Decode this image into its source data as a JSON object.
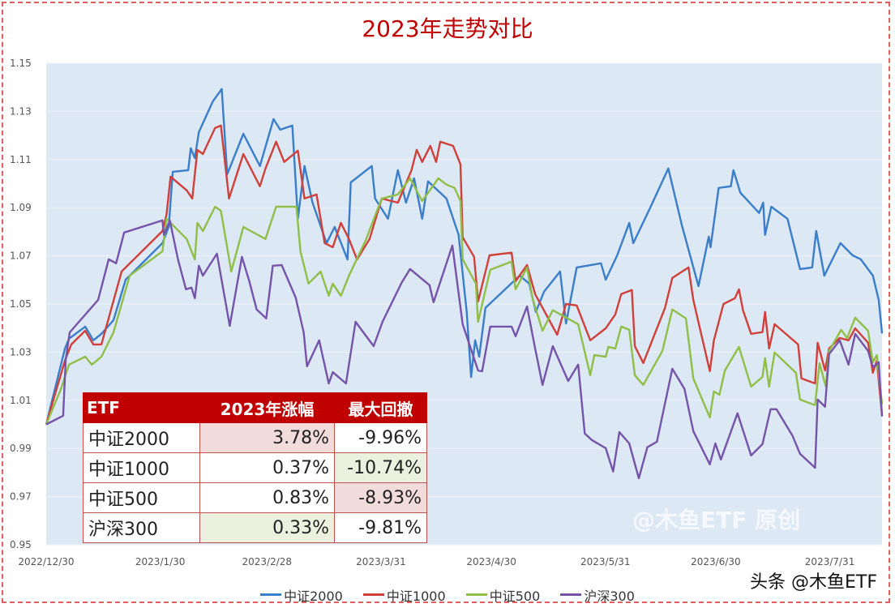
{
  "title": "2023年走势对比",
  "watermark": "@木鱼ETF 原创",
  "brand": "头条 @木鱼ETF",
  "table": {
    "headers": [
      "ETF",
      "2023年涨幅",
      "最大回撤"
    ],
    "rows": [
      {
        "name": "中证2000",
        "gain": "3.78%",
        "drawdown": "-9.96%"
      },
      {
        "name": "中证1000",
        "gain": "0.37%",
        "drawdown": "-10.74%"
      },
      {
        "name": "中证500",
        "gain": "0.83%",
        "drawdown": "-8.93%"
      },
      {
        "name": "沪深300",
        "gain": "0.33%",
        "drawdown": "-9.81%"
      }
    ]
  },
  "chart_data": {
    "type": "line",
    "title": "2023年走势对比",
    "xlabel": "",
    "ylabel": "",
    "x_unit": "days since 2022/12/30",
    "xlim": [
      0,
      227.2
    ],
    "ylim": [
      0.95,
      1.15
    ],
    "yticks": [
      "0.95",
      "0.97",
      "0.99",
      "1.01",
      "1.03",
      "1.05",
      "1.07",
      "1.09",
      "1.11",
      "1.13",
      "1.15"
    ],
    "xticks": [
      {
        "day": 0,
        "label": "2022/12/30"
      },
      {
        "day": 31,
        "label": "2023/1/30"
      },
      {
        "day": 60,
        "label": "2023/2/28"
      },
      {
        "day": 91,
        "label": "2023/3/31"
      },
      {
        "day": 121,
        "label": "2023/4/30"
      },
      {
        "day": 152,
        "label": "2023/5/31"
      },
      {
        "day": 182,
        "label": "2023/6/30"
      },
      {
        "day": 213,
        "label": "2023/7/31"
      }
    ],
    "grid": true,
    "legend_position": "bottom",
    "series": [
      {
        "name": "中证2000",
        "color": "#3a7dc9",
        "x": [
          0,
          5.1,
          6.2,
          10.6,
          12.8,
          15,
          18.3,
          21.6,
          31.6,
          33.3,
          34.4,
          38.6,
          39.3,
          40.4,
          41.5,
          45.3,
          47.7,
          49.2,
          53.6,
          58.1,
          61.8,
          63.6,
          66.9,
          68.4,
          70.2,
          72.4,
          76.2,
          78.4,
          81.9,
          82.8,
          88.5,
          89.4,
          92.9,
          95.6,
          97.8,
          100,
          102.2,
          103.8,
          108.8,
          112.1,
          114.3,
          115.5,
          116.6,
          117.7,
          119.4,
          128.7,
          131.3,
          133.1,
          135.3,
          139.7,
          141.3,
          144.2,
          150.8,
          152.1,
          155.2,
          158.5,
          159.6,
          164,
          169.1,
          172.8,
          177.3,
          180.1,
          180.6,
          182.8,
          186.1,
          186.8,
          188.7,
          193.8,
          194.9,
          195.4,
          197.1,
          201.5,
          204.9,
          208.2,
          209.3,
          211.5,
          215.9,
          219.2,
          221.4,
          224.7,
          226.3,
          227.2
        ],
        "y": [
          1.0,
          1.0315,
          1.0356,
          1.0406,
          1.0349,
          1.0376,
          1.0433,
          1.0601,
          1.0753,
          1.082,
          1.1049,
          1.1056,
          1.1147,
          1.1106,
          1.1214,
          1.1342,
          1.1393,
          1.1039,
          1.1207,
          1.1073,
          1.1268,
          1.1224,
          1.1241,
          1.0854,
          1.1073,
          1.0921,
          1.0753,
          1.082,
          1.0685,
          1.1005,
          1.1073,
          1.0938,
          1.0854,
          1.1056,
          1.0921,
          1.1022,
          1.0854,
          1.1009,
          1.0938,
          1.0787,
          1.0467,
          1.0197,
          1.0349,
          1.0281,
          1.0484,
          1.0618,
          1.0585,
          1.0467,
          1.0551,
          1.0635,
          1.0419,
          1.0652,
          1.0669,
          1.0601,
          1.0702,
          1.0837,
          1.0753,
          1.0894,
          1.1063,
          1.0827,
          1.0574,
          1.078,
          1.0736,
          1.0982,
          1.0989,
          1.1056,
          1.0962,
          1.0878,
          1.0921,
          1.0787,
          1.0904,
          1.0854,
          1.0645,
          1.0652,
          1.0803,
          1.0618,
          1.0753,
          1.0702,
          1.0686,
          1.0618,
          1.0517,
          1.0378
        ]
      },
      {
        "name": "中证1000",
        "color": "#d0403a",
        "x": [
          0,
          5.1,
          6.8,
          10.6,
          12.8,
          15,
          20.5,
          31.6,
          32.7,
          33.8,
          38.2,
          39.7,
          41.1,
          42.6,
          45.9,
          47.5,
          49.7,
          53.6,
          58.1,
          59.6,
          62.5,
          64.7,
          68.4,
          70.2,
          73.5,
          75.7,
          77.9,
          80.1,
          82.3,
          84.5,
          87.9,
          91.2,
          95.6,
          99.3,
          100.7,
          102.2,
          104.4,
          106,
          107.1,
          110.6,
          112.6,
          113.2,
          116.3,
          117.4,
          120.5,
          126.5,
          127.6,
          130.7,
          132.9,
          138.9,
          141.3,
          144.2,
          147.9,
          152.1,
          154.7,
          156.3,
          159.2,
          160,
          162.3,
          168.2,
          170.2,
          174.6,
          175.9,
          180.4,
          181.5,
          184.1,
          187.2,
          188.3,
          189.4,
          191.6,
          194.7,
          195.4,
          196.5,
          198,
          204.4,
          205.3,
          209,
          209.7,
          211.7,
          212.8,
          215.7,
          218.1,
          219.9,
          223.4,
          224.7,
          225.8,
          227.2
        ],
        "y": [
          1.0,
          1.0265,
          1.0332,
          1.0389,
          1.0332,
          1.0332,
          1.0635,
          1.0803,
          1.0871,
          1.1029,
          1.0972,
          1.0938,
          1.114,
          1.1123,
          1.1231,
          1.1241,
          1.0938,
          1.1123,
          1.0989,
          1.1063,
          1.1174,
          1.109,
          1.1137,
          1.0938,
          1.0955,
          1.0753,
          1.0736,
          1.0837,
          1.077,
          1.0685,
          1.077,
          1.0938,
          1.0921,
          1.1056,
          1.114,
          1.109,
          1.1157,
          1.109,
          1.1174,
          1.1157,
          1.108,
          1.0777,
          1.0696,
          1.051,
          1.0702,
          1.0713,
          1.0595,
          1.0662,
          1.0541,
          1.0372,
          1.05,
          1.0494,
          1.0349,
          1.0399,
          1.0457,
          1.0541,
          1.0558,
          1.0325,
          1.0255,
          1.0484,
          1.0608,
          1.0652,
          1.0517,
          1.0221,
          1.0349,
          1.05,
          1.0524,
          1.0561,
          1.0474,
          1.0376,
          1.0383,
          1.0467,
          1.0315,
          1.0416,
          1.0332,
          1.0191,
          1.017,
          1.0339,
          1.0224,
          1.0315,
          1.0359,
          1.0349,
          1.0399,
          1.0339,
          1.0214,
          1.0265,
          1.0037
        ]
      },
      {
        "name": "中证500",
        "color": "#8fbf48",
        "x": [
          0,
          4,
          6.2,
          10.6,
          12.4,
          15,
          18.3,
          22.7,
          31.6,
          32.7,
          38.2,
          40.4,
          41.1,
          42.6,
          45.9,
          47.5,
          50.3,
          53.6,
          59.6,
          62.5,
          68,
          69.1,
          71.3,
          74.6,
          76.8,
          77.9,
          80.1,
          82.3,
          86.8,
          91.2,
          95.6,
          98.9,
          102.2,
          106.6,
          108.8,
          111,
          112.6,
          113.2,
          116.8,
          117.4,
          120.7,
          126.5,
          127.6,
          130.7,
          132.2,
          134.9,
          137.7,
          144.6,
          147.9,
          149,
          152.1,
          152.8,
          154.7,
          156.3,
          158.5,
          160,
          162.3,
          167.5,
          170.2,
          173.9,
          175.9,
          180.4,
          181.5,
          183,
          184.5,
          188.3,
          191.6,
          194.7,
          195.4,
          196.5,
          198,
          203.8,
          204.9,
          209,
          210.2,
          211.9,
          212.8,
          216.1,
          217.7,
          219.9,
          223.4,
          224.7,
          225.8,
          227.2
        ],
        "y": [
          1.0,
          1.0147,
          1.0248,
          1.0281,
          1.0248,
          1.0281,
          1.0382,
          1.0618,
          1.0719,
          1.0854,
          1.077,
          1.0685,
          1.0837,
          1.0803,
          1.0904,
          1.0887,
          1.0635,
          1.082,
          1.077,
          1.0904,
          1.0904,
          1.0719,
          1.0585,
          1.0635,
          1.0534,
          1.0585,
          1.0534,
          1.0618,
          1.0763,
          1.0938,
          1.0955,
          1.1022,
          1.0928,
          1.1022,
          1.0996,
          1.0982,
          1.0928,
          1.0686,
          1.0585,
          1.0426,
          1.0642,
          1.0676,
          1.0561,
          1.0652,
          1.0524,
          1.0389,
          1.0474,
          1.0416,
          1.0204,
          1.0288,
          1.0281,
          1.0322,
          1.0315,
          1.0406,
          1.0393,
          1.0204,
          1.0164,
          1.0305,
          1.0477,
          1.044,
          1.0191,
          1.0029,
          1.0137,
          1.0123,
          1.0224,
          1.0322,
          1.0157,
          1.0197,
          1.0275,
          1.0157,
          1.0299,
          1.0214,
          1.0103,
          1.008,
          1.0254,
          1.0157,
          1.0305,
          1.0393,
          1.0359,
          1.0443,
          1.0389,
          1.0258,
          1.0288,
          1.0083
        ]
      },
      {
        "name": "沪深300",
        "color": "#7553a8",
        "x": [
          0,
          4.6,
          5.3,
          6.4,
          14.1,
          17,
          19,
          21.2,
          31.6,
          32,
          33.6,
          35.8,
          38,
          39.5,
          40.4,
          41.5,
          42.6,
          46.4,
          49.9,
          53.2,
          55.2,
          57.2,
          59.8,
          61.6,
          64,
          67.8,
          70,
          70.9,
          74.2,
          76.8,
          77.9,
          81.5,
          84.1,
          89,
          91.4,
          96.7,
          98.9,
          104.2,
          105.3,
          110.4,
          113.2,
          117.4,
          118.5,
          120.7,
          126.5,
          127.6,
          130.7,
          132.9,
          134.9,
          137.7,
          141.9,
          144.6,
          146.4,
          148.3,
          152.1,
          154.1,
          155.8,
          158.5,
          161.1,
          163.4,
          166,
          170.2,
          173.5,
          175.9,
          180.4,
          181.9,
          183.4,
          187.9,
          191.6,
          194.7,
          196.9,
          198.5,
          202.9,
          204.9,
          209,
          209.7,
          211.7,
          212.8,
          215.7,
          218.1,
          219.9,
          223.4,
          224.7,
          226.3,
          227.2
        ],
        "y": [
          1.0,
          1.0036,
          1.0271,
          1.0382,
          1.0517,
          1.0686,
          1.0669,
          1.0797,
          1.0847,
          1.0787,
          1.0847,
          1.0686,
          1.0561,
          1.0568,
          1.0524,
          1.0659,
          1.0618,
          1.0709,
          1.0409,
          1.0696,
          1.0595,
          1.0477,
          1.044,
          1.0659,
          1.0662,
          1.0527,
          1.0382,
          1.0241,
          1.0349,
          1.017,
          1.0217,
          1.017,
          1.0426,
          1.0325,
          1.0426,
          1.0591,
          1.0645,
          1.0578,
          1.0507,
          1.0743,
          1.0416,
          1.0224,
          1.0221,
          1.0406,
          1.0406,
          1.0366,
          1.049,
          1.0315,
          1.0164,
          1.0325,
          1.018,
          1.0248,
          0.9962,
          0.9935,
          0.9901,
          0.9804,
          0.9968,
          0.9921,
          0.9776,
          0.9905,
          0.9928,
          1.0231,
          1.0147,
          0.9972,
          0.9834,
          0.9921,
          0.9854,
          1.0046,
          0.9871,
          0.9918,
          1.0063,
          1.0063,
          0.9952,
          0.9878,
          0.982,
          1.0103,
          1.0073,
          1.0292,
          1.0349,
          1.0248,
          1.0376,
          1.0305,
          1.0238,
          1.0258,
          1.0033
        ]
      }
    ]
  }
}
